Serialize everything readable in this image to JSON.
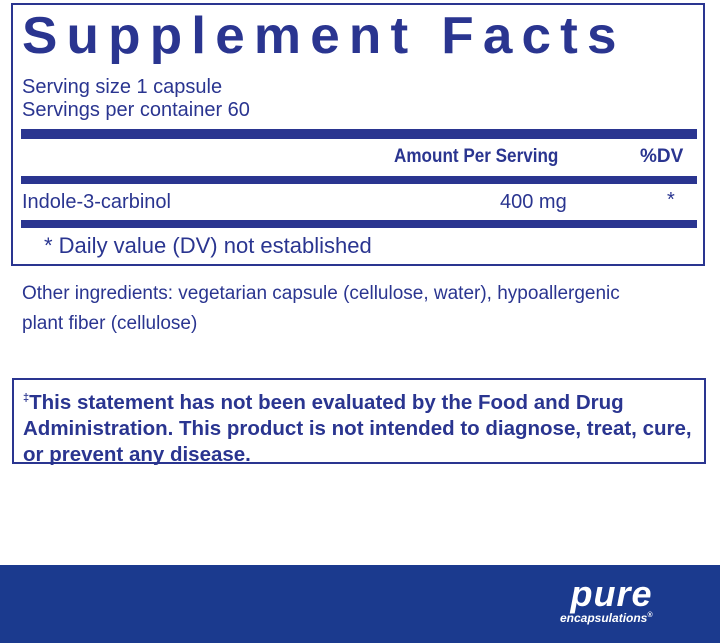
{
  "title": "Supplement Facts",
  "serving_size": "Serving size  1 capsule",
  "servings_per_container": "Servings per container  60",
  "header": {
    "amount": "Amount Per Serving",
    "dv": "%DV"
  },
  "rows": [
    {
      "name": "Indole-3-carbinol",
      "amount": "400 mg",
      "dv": "*"
    }
  ],
  "footnote": "* Daily value (DV) not established",
  "other_ingredients": [
    "Other ingredients: vegetarian capsule (cellulose, water), hypoallergenic",
    "plant fiber (cellulose)"
  ],
  "disclaimer": {
    "mark": "‡",
    "text": "This statement has not been evaluated by the Food and Drug Administration. This product is not intended to diagnose, treat, cure, or prevent any disease."
  },
  "brand": {
    "name": "pure",
    "sub": "encapsulations",
    "reg": "®"
  },
  "colors": {
    "text": "#2a3590",
    "footer": "#1b3a8e"
  }
}
